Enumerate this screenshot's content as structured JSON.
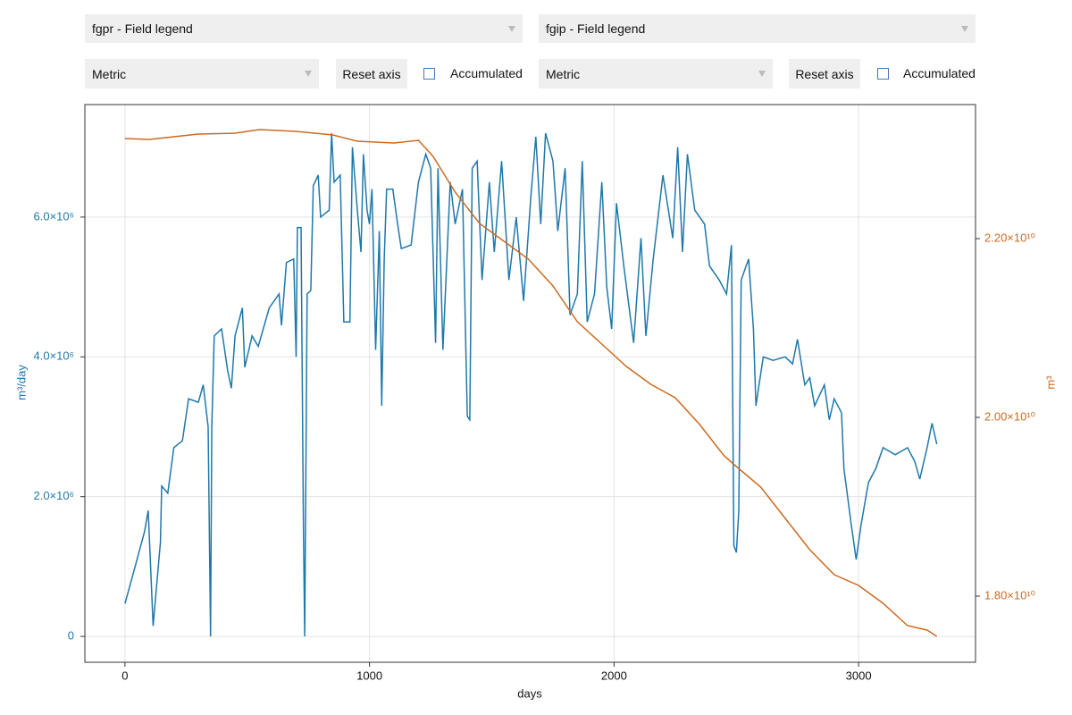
{
  "controls": {
    "field_left": "fgpr - Field legend",
    "field_right": "fgip - Field legend",
    "metric_left": "Metric",
    "metric_right": "Metric",
    "reset_left": "Reset axis",
    "reset_right": "Reset axis",
    "accumulated_left": "Accumulated",
    "accumulated_right": "Accumulated"
  },
  "chart_data": {
    "type": "line",
    "xlabel": "days",
    "ylabel": "m³/day",
    "y2label": "m³",
    "xlim": [
      -164,
      3478
    ],
    "xticks": [
      0,
      1000,
      2000,
      3000
    ],
    "ylim": [
      -370000,
      7610000
    ],
    "yticks": [
      0,
      {
        "value": 2000000,
        "label": "2.0×10⁶"
      },
      {
        "value": 4000000,
        "label": "4.0×10⁶"
      },
      {
        "value": 6000000,
        "label": "6.0×10⁶"
      }
    ],
    "y2lim": [
      17260000000,
      23500000000
    ],
    "y2ticks": [
      {
        "value": 18000000000,
        "label": "1.80×10¹⁰"
      },
      {
        "value": 20000000000,
        "label": "2.00×10¹⁰"
      },
      {
        "value": 22000000000,
        "label": "2.20×10¹⁰"
      }
    ],
    "grid": true,
    "series": [
      {
        "color": "#1f78aa",
        "x": [
          0,
          30,
          80,
          95,
          115,
          145,
          150,
          175,
          200,
          235,
          260,
          300,
          320,
          340,
          350,
          355,
          365,
          395,
          420,
          435,
          450,
          480,
          490,
          520,
          545,
          590,
          630,
          640,
          660,
          690,
          700,
          705,
          720,
          730,
          735,
          745,
          760,
          770,
          790,
          800,
          835,
          845,
          855,
          880,
          895,
          920,
          930,
          950,
          965,
          975,
          990,
          1000,
          1010,
          1025,
          1040,
          1050,
          1060,
          1070,
          1095,
          1115,
          1130,
          1170,
          1200,
          1230,
          1250,
          1270,
          1280,
          1300,
          1330,
          1350,
          1380,
          1400,
          1410,
          1420,
          1440,
          1460,
          1490,
          1510,
          1540,
          1570,
          1600,
          1630,
          1660,
          1680,
          1700,
          1720,
          1750,
          1770,
          1800,
          1820,
          1850,
          1870,
          1890,
          1920,
          1950,
          1970,
          1990,
          2010,
          2040,
          2080,
          2110,
          2130,
          2160,
          2200,
          2240,
          2260,
          2280,
          2300,
          2330,
          2370,
          2390,
          2430,
          2460,
          2480,
          2490,
          2500,
          2510,
          2520,
          2550,
          2570,
          2580,
          2610,
          2650,
          2700,
          2730,
          2750,
          2780,
          2800,
          2820,
          2860,
          2880,
          2900,
          2930,
          2940,
          2970,
          2990,
          3010,
          3040,
          3070,
          3100,
          3150,
          3200,
          3230,
          3250,
          3280,
          3300,
          3320
        ],
        "values": [
          470000,
          850000,
          1500000,
          1800000,
          150000,
          1350000,
          2150000,
          2050000,
          2700000,
          2800000,
          3400000,
          3350000,
          3600000,
          3000000,
          0,
          3000000,
          4300000,
          4400000,
          3800000,
          3550000,
          4300000,
          4700000,
          3850000,
          4300000,
          4150000,
          4700000,
          4900000,
          4450000,
          5350000,
          5400000,
          4000000,
          5850000,
          5850000,
          1500000,
          0,
          4900000,
          4950000,
          6450000,
          6600000,
          6000000,
          6100000,
          7200000,
          6500000,
          6600000,
          4500000,
          4500000,
          7000000,
          6100000,
          5500000,
          6900000,
          6100000,
          5900000,
          6400000,
          4100000,
          5800000,
          3300000,
          5400000,
          6400000,
          6400000,
          5900000,
          5550000,
          5600000,
          6500000,
          6900000,
          6700000,
          4200000,
          6700000,
          4100000,
          6500000,
          5900000,
          6400000,
          3150000,
          3100000,
          6700000,
          6800000,
          5100000,
          6500000,
          5500000,
          6800000,
          5100000,
          6000000,
          4800000,
          6300000,
          7150000,
          5900000,
          7200000,
          6800000,
          5800000,
          6700000,
          4600000,
          4900000,
          6800000,
          4500000,
          4900000,
          6500000,
          5000000,
          4400000,
          6200000,
          5300000,
          4200000,
          5700000,
          4300000,
          5400000,
          6600000,
          5700000,
          7000000,
          5500000,
          6900000,
          6100000,
          5900000,
          5300000,
          5100000,
          4900000,
          5600000,
          1300000,
          1200000,
          1800000,
          5100000,
          5400000,
          4400000,
          3300000,
          4000000,
          3950000,
          4000000,
          3900000,
          4250000,
          3600000,
          3700000,
          3300000,
          3600000,
          3100000,
          3400000,
          3200000,
          2400000,
          1600000,
          1100000,
          1600000,
          2200000,
          2400000,
          2700000,
          2600000,
          2700000,
          2500000,
          2250000,
          2700000,
          3050000,
          2750000
        ]
      },
      {
        "color": "#cc6a1f",
        "axis": "y2",
        "x": [
          0,
          100,
          200,
          300,
          450,
          550,
          700,
          850,
          950,
          1100,
          1200,
          1260,
          1350,
          1450,
          1550,
          1650,
          1750,
          1850,
          1950,
          2050,
          2150,
          2250,
          2350,
          2450,
          2500,
          2600,
          2700,
          2800,
          2900,
          3000,
          3100,
          3200,
          3280,
          3320
        ],
        "values": [
          23120000000,
          23110000000,
          23140000000,
          23170000000,
          23180000000,
          23220000000,
          23200000000,
          23160000000,
          23090000000,
          23070000000,
          23100000000,
          22920000000,
          22520000000,
          22170000000,
          21970000000,
          21770000000,
          21470000000,
          21070000000,
          20820000000,
          20570000000,
          20370000000,
          20220000000,
          19920000000,
          19570000000,
          19450000000,
          19220000000,
          18870000000,
          18520000000,
          18240000000,
          18120000000,
          17920000000,
          17670000000,
          17620000000,
          17550000000
        ]
      }
    ]
  }
}
